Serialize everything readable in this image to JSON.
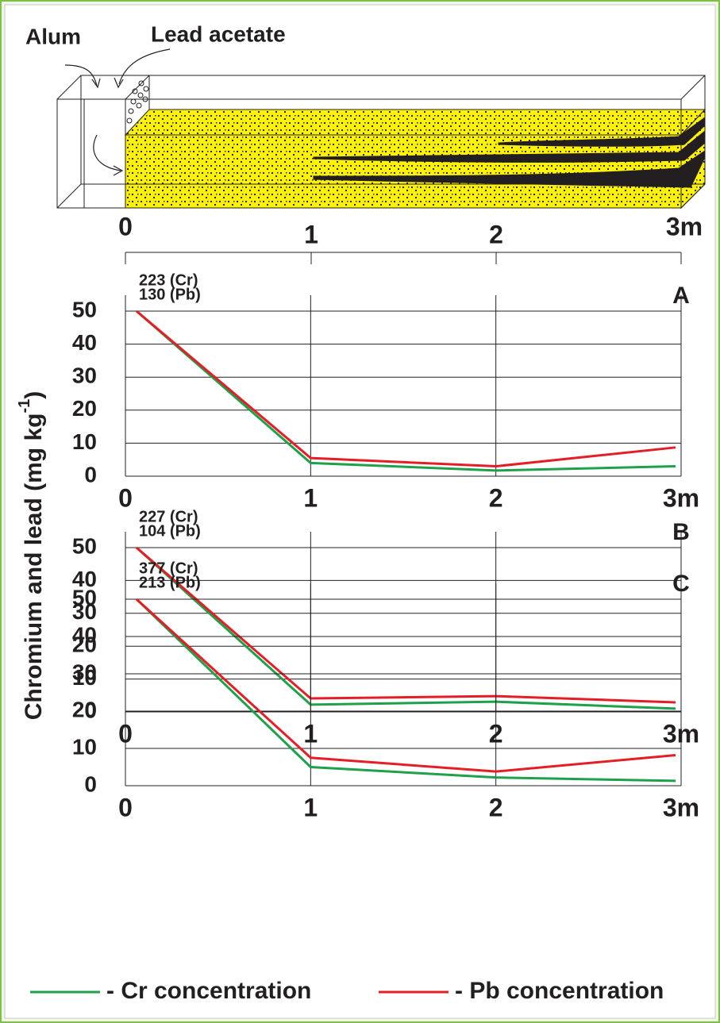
{
  "diagram": {
    "labels": [
      "Alum",
      "Lead acetate"
    ],
    "scale": [
      "0",
      "1",
      "2",
      "3m"
    ]
  },
  "y_label": [
    "Chromium and lead  (mg kg",
    "-1",
    ")"
  ],
  "chart_data": [
    {
      "type": "line",
      "panel": "A",
      "annotations": [
        "223 (Cr)",
        "130 (Pb)"
      ],
      "x": [
        0.06,
        1,
        2,
        2.97
      ],
      "xlim": [
        0,
        3
      ],
      "xticks": [
        0,
        1,
        2,
        {
          "value": 3,
          "label": "3m"
        }
      ],
      "ylim": [
        0,
        50
      ],
      "yticks": [
        0,
        10,
        20,
        30,
        40,
        50
      ],
      "grid": true,
      "series": [
        {
          "name": "- Cr concentration",
          "color": "#1fa04a",
          "values": [
            50,
            4,
            1.7,
            3
          ]
        },
        {
          "name": "- Pb concentration",
          "color": "#e41e26",
          "values": [
            50,
            5.5,
            3,
            8.7
          ]
        }
      ]
    },
    {
      "type": "line",
      "panel": "B",
      "annotations": [
        "227 (Cr)",
        "104 (Pb)"
      ],
      "x": [
        0.06,
        1,
        2,
        2.97
      ],
      "xlim": [
        0,
        3
      ],
      "xticks": [
        0,
        1,
        2,
        {
          "value": 3,
          "label": "3m"
        }
      ],
      "ylim": [
        0,
        50
      ],
      "yticks": [
        0,
        10,
        20,
        30,
        40,
        50
      ],
      "grid": true,
      "series": [
        {
          "name": "- Cr concentration",
          "color": "#1fa04a",
          "values": [
            50,
            2.2,
            3.1,
            1
          ]
        },
        {
          "name": "- Pb concentration",
          "color": "#e41e26",
          "values": [
            50,
            4.1,
            4.8,
            2.9
          ]
        }
      ]
    },
    {
      "type": "line",
      "panel": "C",
      "annotations": [
        "377 (Cr)",
        "213 (Pb)"
      ],
      "x": [
        0.06,
        1,
        2,
        2.97
      ],
      "xlim": [
        0,
        3
      ],
      "xticks": [
        0,
        1,
        2,
        {
          "value": 3,
          "label": "3m"
        }
      ],
      "ylim": [
        0,
        50
      ],
      "yticks": [
        0,
        10,
        20,
        30,
        40,
        50
      ],
      "grid": true,
      "series": [
        {
          "name": "- Cr concentration",
          "color": "#1fa04a",
          "values": [
            50,
            5,
            2.2,
            1.3
          ]
        },
        {
          "name": "- Pb concentration",
          "color": "#e41e26",
          "values": [
            50,
            7.5,
            3.8,
            8.2
          ]
        }
      ]
    }
  ]
}
